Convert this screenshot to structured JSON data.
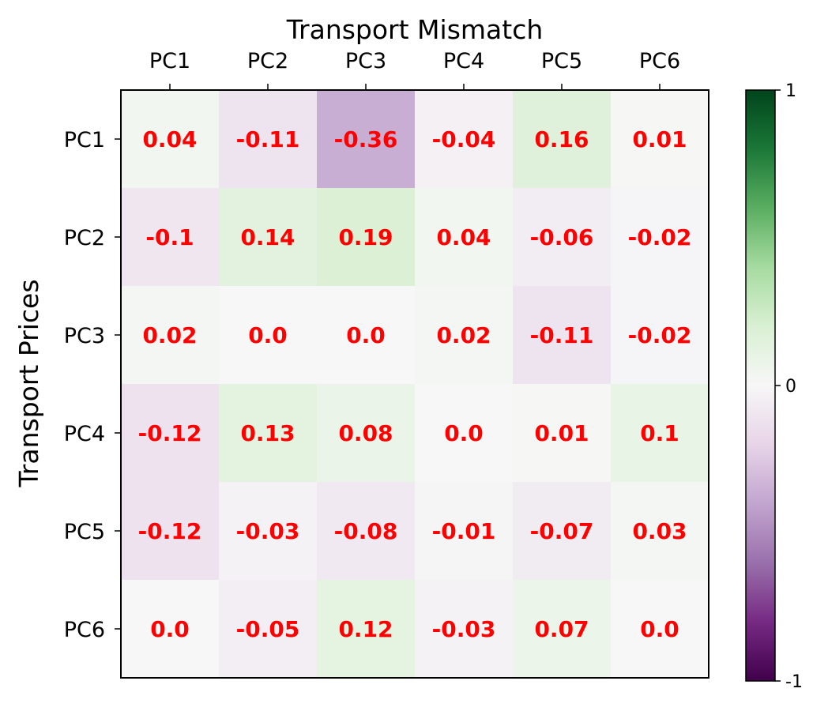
{
  "chart_data": {
    "type": "heatmap",
    "title": "Transport Mismatch",
    "xlabel": "",
    "ylabel": "Transport Prices",
    "x_categories": [
      "PC1",
      "PC2",
      "PC3",
      "PC4",
      "PC5",
      "PC6"
    ],
    "y_categories": [
      "PC1",
      "PC2",
      "PC3",
      "PC4",
      "PC5",
      "PC6"
    ],
    "values": [
      [
        0.04,
        -0.11,
        -0.36,
        -0.04,
        0.16,
        0.01
      ],
      [
        -0.1,
        0.14,
        0.19,
        0.04,
        -0.06,
        -0.02
      ],
      [
        0.02,
        0.0,
        0.0,
        0.02,
        -0.11,
        -0.02
      ],
      [
        -0.12,
        0.13,
        0.08,
        0.0,
        0.01,
        0.1
      ],
      [
        -0.12,
        -0.03,
        -0.08,
        -0.01,
        -0.07,
        0.03
      ],
      [
        0.0,
        -0.05,
        0.12,
        -0.03,
        0.07,
        0.0
      ]
    ],
    "value_labels": [
      [
        "0.04",
        "-0.11",
        "-0.36",
        "-0.04",
        "0.16",
        "0.01"
      ],
      [
        "-0.1",
        "0.14",
        "0.19",
        "0.04",
        "-0.06",
        "-0.02"
      ],
      [
        "0.02",
        "0.0",
        "0.0",
        "0.02",
        "-0.11",
        "-0.02"
      ],
      [
        "-0.12",
        "0.13",
        "0.08",
        "0.0",
        "0.01",
        "0.1"
      ],
      [
        "-0.12",
        "-0.03",
        "-0.08",
        "-0.01",
        "-0.07",
        "0.03"
      ],
      [
        "0.0",
        "-0.05",
        "0.12",
        "-0.03",
        "0.07",
        "0.0"
      ]
    ],
    "x_axis_position": "top",
    "colormap": "PRGn",
    "color_range": [
      -1,
      1
    ],
    "colorbar": {
      "ticks": [
        -1,
        0,
        1
      ],
      "tick_labels": [
        "-1",
        "0",
        "1"
      ],
      "position": "right"
    },
    "label_color": "#ff0000",
    "grid": false
  }
}
